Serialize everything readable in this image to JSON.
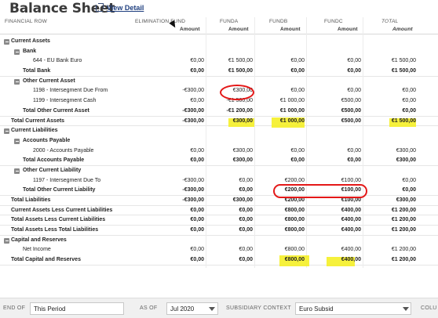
{
  "header": {
    "title": "Balance Sheet",
    "view_detail": "View Detail"
  },
  "columns": {
    "financial_row": "FINANCIAL ROW",
    "elim": {
      "name": "ELIMINATION FUND",
      "sub": "Amount"
    },
    "funda": {
      "name": "FUNDA",
      "sub": "Amount"
    },
    "fundb": {
      "name": "FUNDB",
      "sub": "Amount"
    },
    "fundc": {
      "name": "FUNDC",
      "sub": "Amount"
    },
    "total": {
      "name": "TOTAL",
      "sub": "Amount"
    }
  },
  "rows": [
    {
      "label": "Current Assets",
      "v": [
        "",
        "",
        "",
        "",
        ""
      ]
    },
    {
      "label": "Bank",
      "v": [
        "",
        "",
        "",
        "",
        ""
      ]
    },
    {
      "label": "644 - EU Bank Euro",
      "v": [
        "€0,00",
        "€1 500,00",
        "€0,00",
        "€0,00",
        "€1 500,00"
      ]
    },
    {
      "label": "Total Bank",
      "v": [
        "€0,00",
        "€1 500,00",
        "€0,00",
        "€0,00",
        "€1 500,00"
      ]
    },
    {
      "label": "Other Current Asset",
      "v": [
        "",
        "",
        "",
        "",
        ""
      ]
    },
    {
      "label": "1198 - Intersegment Due From",
      "v": [
        "-€300,00",
        "€300,00",
        "€0,00",
        "€0,00",
        "€0,00"
      ]
    },
    {
      "label": "1199 - Intersegment Cash",
      "v": [
        "€0,00",
        "-€1 500,00",
        "€1 000,00",
        "€500,00",
        "€0,00"
      ]
    },
    {
      "label": "Total Other Current Asset",
      "v": [
        "-€300,00",
        "-€1 200,00",
        "€1 000,00",
        "€500,00",
        "€0,00"
      ]
    },
    {
      "label": "Total Current Assets",
      "v": [
        "-€300,00",
        "€300,00",
        "€1 000,00",
        "€500,00",
        "€1 500,00"
      ]
    },
    {
      "label": "Current Liabilities",
      "v": [
        "",
        "",
        "",
        "",
        ""
      ]
    },
    {
      "label": "Accounts Payable",
      "v": [
        "",
        "",
        "",
        "",
        ""
      ]
    },
    {
      "label": "2000 - Accounts Payable",
      "v": [
        "€0,00",
        "€300,00",
        "€0,00",
        "€0,00",
        "€300,00"
      ]
    },
    {
      "label": "Total Accounts Payable",
      "v": [
        "€0,00",
        "€300,00",
        "€0,00",
        "€0,00",
        "€300,00"
      ]
    },
    {
      "label": "Other Current Liability",
      "v": [
        "",
        "",
        "",
        "",
        ""
      ]
    },
    {
      "label": "1197 - Intersegment Due To",
      "v": [
        "-€300,00",
        "€0,00",
        "€200,00",
        "€100,00",
        "€0,00"
      ]
    },
    {
      "label": "Total Other Current Liability",
      "v": [
        "-€300,00",
        "€0,00",
        "€200,00",
        "€100,00",
        "€0,00"
      ]
    },
    {
      "label": "Total Liabilities",
      "v": [
        "-€300,00",
        "€300,00",
        "€200,00",
        "€100,00",
        "€300,00"
      ]
    },
    {
      "label": "Current Assets Less Current Liabilities",
      "v": [
        "€0,00",
        "€0,00",
        "€800,00",
        "€400,00",
        "€1 200,00"
      ]
    },
    {
      "label": "Total Assets Less Current Liabilities",
      "v": [
        "€0,00",
        "€0,00",
        "€800,00",
        "€400,00",
        "€1 200,00"
      ]
    },
    {
      "label": "Total Assets Less Total Liabilities",
      "v": [
        "€0,00",
        "€0,00",
        "€800,00",
        "€400,00",
        "€1 200,00"
      ]
    },
    {
      "label": "Capital and Reserves",
      "v": [
        "",
        "",
        "",
        "",
        ""
      ]
    },
    {
      "label": "Net Income",
      "v": [
        "€0,00",
        "€0,00",
        "€800,00",
        "€400,00",
        "€1 200,00"
      ]
    },
    {
      "label": "Total Capital and Reserves",
      "v": [
        "€0,00",
        "€0,00",
        "€800,00",
        "€400,00",
        "€1 200,00"
      ]
    }
  ],
  "footer": {
    "end_of_label": "END OF",
    "end_of_value": "This Period",
    "as_of_label": "AS OF",
    "as_of_value": "Jul 2020",
    "subsidiary_label": "SUBSIDIARY CONTEXT",
    "subsidiary_value": "Euro Subsid",
    "column_label": "COLU"
  },
  "colors": {
    "highlight": "#f5ee1a",
    "annotation_red": "#e41818",
    "link_blue": "#1f3f7f"
  }
}
